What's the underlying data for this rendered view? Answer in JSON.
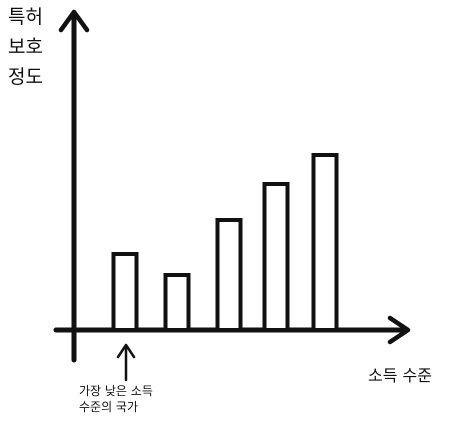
{
  "chart_data": {
    "type": "bar",
    "title": "",
    "ylabel_lines": [
      "특허",
      "보호",
      "정도"
    ],
    "xlabel": "소득 수준",
    "ticks_shown": false,
    "grid": false,
    "legend": "none",
    "categories": [
      "",
      "",
      "",
      "",
      ""
    ],
    "values": [
      76,
      55,
      110,
      146,
      175
    ],
    "ylim": [
      0,
      330
    ],
    "annotation": {
      "lines": [
        "가장 낮은 소득",
        "수준의 국가"
      ],
      "target_index": 0
    },
    "colors": {
      "ink": "#111111",
      "fill": "#ffffff"
    }
  }
}
